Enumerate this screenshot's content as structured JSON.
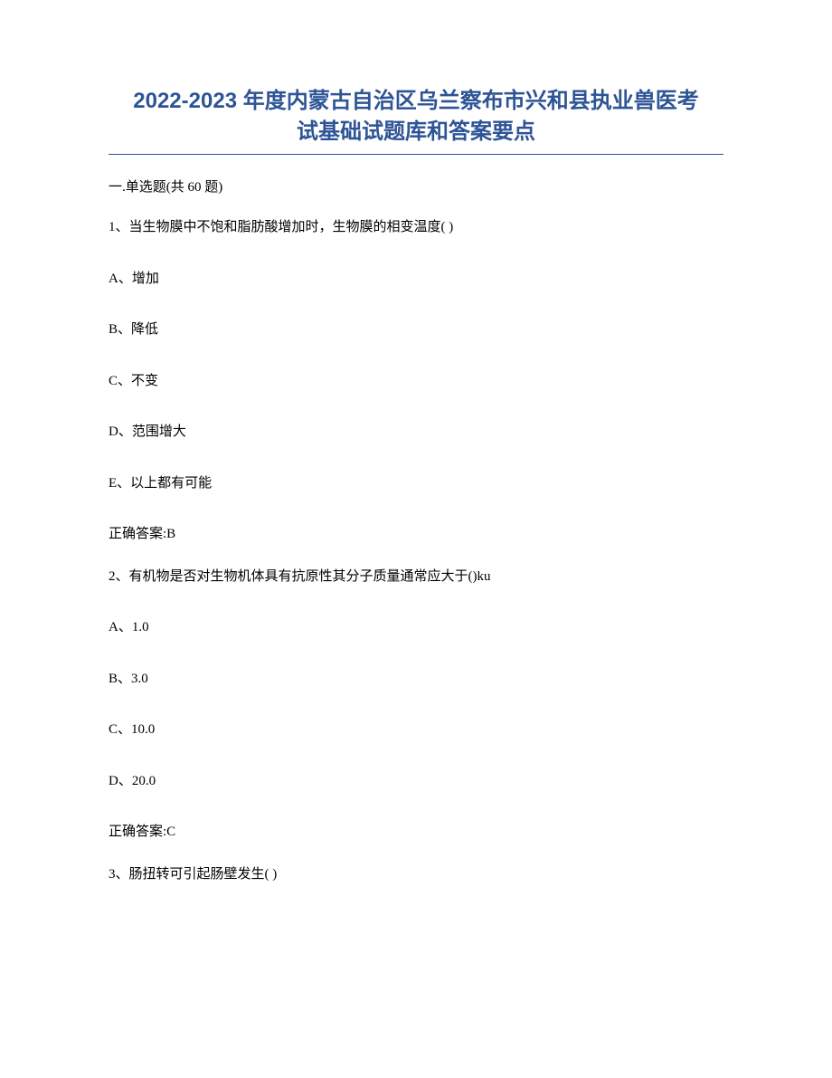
{
  "title": {
    "line1": "2022-2023 年度内蒙古自治区乌兰察布市兴和县执业兽医考",
    "line2": "试基础试题库和答案要点"
  },
  "section_header": "一.单选题(共 60 题)",
  "questions": [
    {
      "prompt": "1、当生物膜中不饱和脂肪酸增加时，生物膜的相变温度( )",
      "options": [
        "A、增加",
        "B、降低",
        "C、不变",
        "D、范围增大",
        "E、以上都有可能"
      ],
      "answer": "正确答案:B"
    },
    {
      "prompt": "2、有机物是否对生物机体具有抗原性其分子质量通常应大于()ku",
      "options": [
        "A、1.0",
        "B、3.0",
        "C、10.0",
        "D、20.0"
      ],
      "answer": "正确答案:C"
    },
    {
      "prompt": "3、肠扭转可引起肠壁发生( )",
      "options": [],
      "answer": ""
    }
  ],
  "colors": {
    "title_color": "#2e5496",
    "text_color": "#000000",
    "background_color": "#ffffff",
    "underline_color": "#2e5496"
  },
  "typography": {
    "title_fontsize": 24,
    "body_fontsize": 15,
    "title_weight": "bold"
  }
}
